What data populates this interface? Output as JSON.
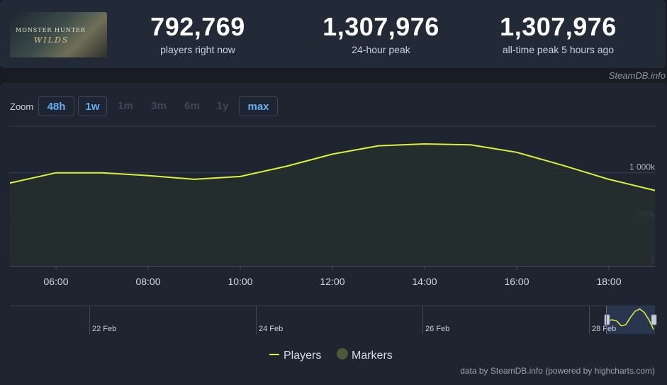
{
  "header": {
    "logo_text": "MONSTER HUNTER",
    "logo_sub": "WILDS",
    "stats": [
      {
        "value": "792,769",
        "label": "players right now"
      },
      {
        "value": "1,307,976",
        "label": "24-hour peak"
      },
      {
        "value": "1,307,976",
        "label": "all-time peak 5 hours ago"
      }
    ],
    "credit": "SteamDB.info"
  },
  "zoom": {
    "label": "Zoom",
    "buttons": [
      {
        "label": "48h",
        "state": "active"
      },
      {
        "label": "1w",
        "state": "active"
      },
      {
        "label": "1m",
        "state": "disabled"
      },
      {
        "label": "3m",
        "state": "disabled"
      },
      {
        "label": "6m",
        "state": "disabled"
      },
      {
        "label": "1y",
        "state": "disabled"
      },
      {
        "label": "max",
        "state": "active"
      }
    ]
  },
  "chart_data": {
    "type": "area",
    "x_ticks": [
      "06:00",
      "08:00",
      "10:00",
      "12:00",
      "14:00",
      "16:00",
      "18:00"
    ],
    "y_ticks": [
      "0",
      "500k",
      "1 000k"
    ],
    "ylim": [
      0,
      1500000
    ],
    "series": [
      {
        "name": "Players",
        "color": "#dcf03c",
        "x": [
          5.0,
          6.0,
          7.0,
          8.0,
          9.0,
          10.0,
          11.0,
          12.0,
          13.0,
          14.0,
          15.0,
          16.0,
          17.0,
          18.0,
          19.0
        ],
        "values": [
          890000,
          1000000,
          1000000,
          970000,
          930000,
          960000,
          1070000,
          1200000,
          1290000,
          1310000,
          1300000,
          1220000,
          1080000,
          930000,
          810000
        ]
      }
    ],
    "navigator_labels": [
      "22 Feb",
      "24 Feb",
      "26 Feb",
      "28 Feb"
    ],
    "legend": [
      "Players",
      "Markers"
    ],
    "grid": true
  },
  "footer": {
    "credit": "data by SteamDB.info (powered by highcharts.com)"
  },
  "colors": {
    "line": "#dcf03c",
    "area": "#252f2d",
    "marker": "#4a5a38",
    "accent": "#66b0f0"
  }
}
